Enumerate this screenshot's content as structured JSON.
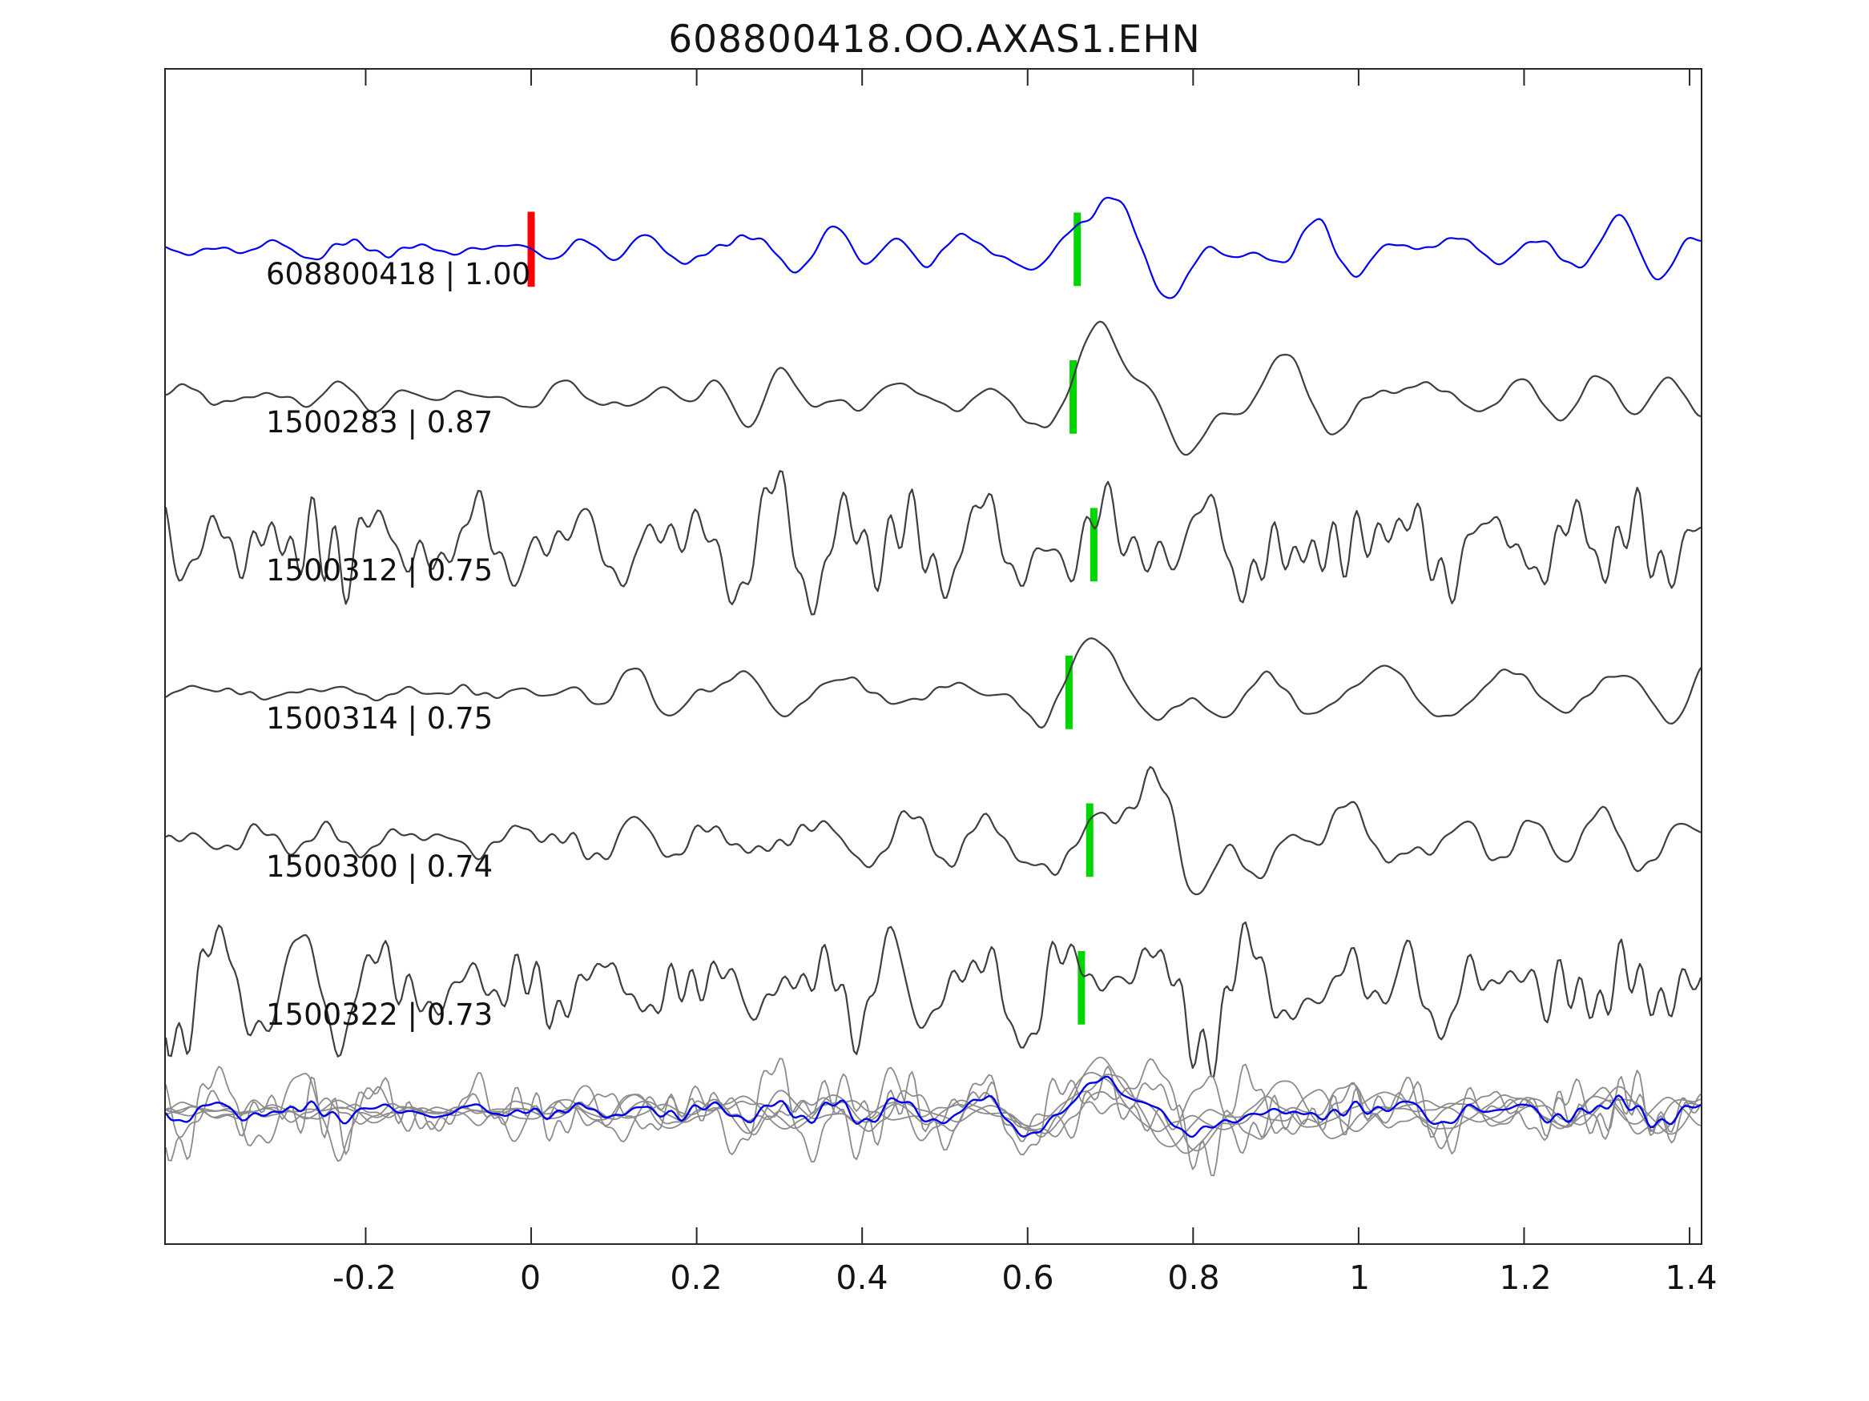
{
  "title": "608800418.OO.AXAS1.EHN",
  "chart_data": {
    "type": "line",
    "title": "608800418.OO.AXAS1.EHN",
    "xlabel": "",
    "ylabel": "",
    "xlim": [
      -0.4415,
      1.4135
    ],
    "xticks": [
      -0.2,
      0,
      0.2,
      0.4,
      0.6,
      0.8,
      1,
      1.2,
      1.4
    ],
    "xtick_labels": [
      "-0.2",
      "0",
      "0.2",
      "0.4",
      "0.6",
      "0.8",
      "1",
      "1.2",
      "1.4"
    ],
    "grid": false,
    "legend": "none",
    "reference_marker": {
      "x": 0,
      "color": "#ff0000",
      "on_trace": "608800418"
    },
    "pick_marker_color": "#00d500",
    "trace_color_template": "#0000ee",
    "trace_color_match": "#3f3f3f",
    "overlay_color_individual": "#8c8c8c",
    "overlay_color_stack": "#0000ee",
    "traces": [
      {
        "id": "608800418",
        "cc": "1.00",
        "label_text": "608800418 | 1.00",
        "color": "#0000ee",
        "pick_x": 0.66,
        "noise_level": "low",
        "pre": 6,
        "mid": 16,
        "hf": 2,
        "coda": 30,
        "peak": 80,
        "seed": 11
      },
      {
        "id": "1500283",
        "cc": "0.87",
        "label_text": "1500283 | 0.87",
        "color": "#3f3f3f",
        "pick_x": 0.655,
        "noise_level": "low",
        "pre": 7,
        "mid": 18,
        "hf": 2,
        "coda": 32,
        "peak": 85,
        "seed": 23
      },
      {
        "id": "1500312",
        "cc": "0.75",
        "label_text": "1500312 | 0.75",
        "color": "#3f3f3f",
        "pick_x": 0.68,
        "noise_level": "high",
        "pre": 46,
        "mid": 46,
        "hf": 20,
        "coda": 25,
        "peak": 62,
        "seed": 37
      },
      {
        "id": "1500314",
        "cc": "0.75",
        "label_text": "1500314 | 0.75",
        "color": "#3f3f3f",
        "pick_x": 0.65,
        "noise_level": "low",
        "pre": 7,
        "mid": 20,
        "hf": 2,
        "coda": 34,
        "peak": 85,
        "seed": 41
      },
      {
        "id": "1500300",
        "cc": "0.74",
        "label_text": "1500300 | 0.74",
        "color": "#3f3f3f",
        "pick_x": 0.675,
        "noise_level": "medium",
        "pre": 12,
        "mid": 28,
        "hf": 5,
        "coda": 45,
        "peak": 80,
        "seed": 59
      },
      {
        "id": "1500322",
        "cc": "0.73",
        "label_text": "1500322 | 0.73",
        "color": "#3f3f3f",
        "pick_x": 0.665,
        "noise_level": "high",
        "pre": 44,
        "mid": 44,
        "hf": 20,
        "coda": 30,
        "peak": 68,
        "seed": 67
      }
    ],
    "overlay_row": {
      "description": "all traces overlaid in gray with blue stacked/aligned trace",
      "amp_scale": 0.72
    }
  }
}
